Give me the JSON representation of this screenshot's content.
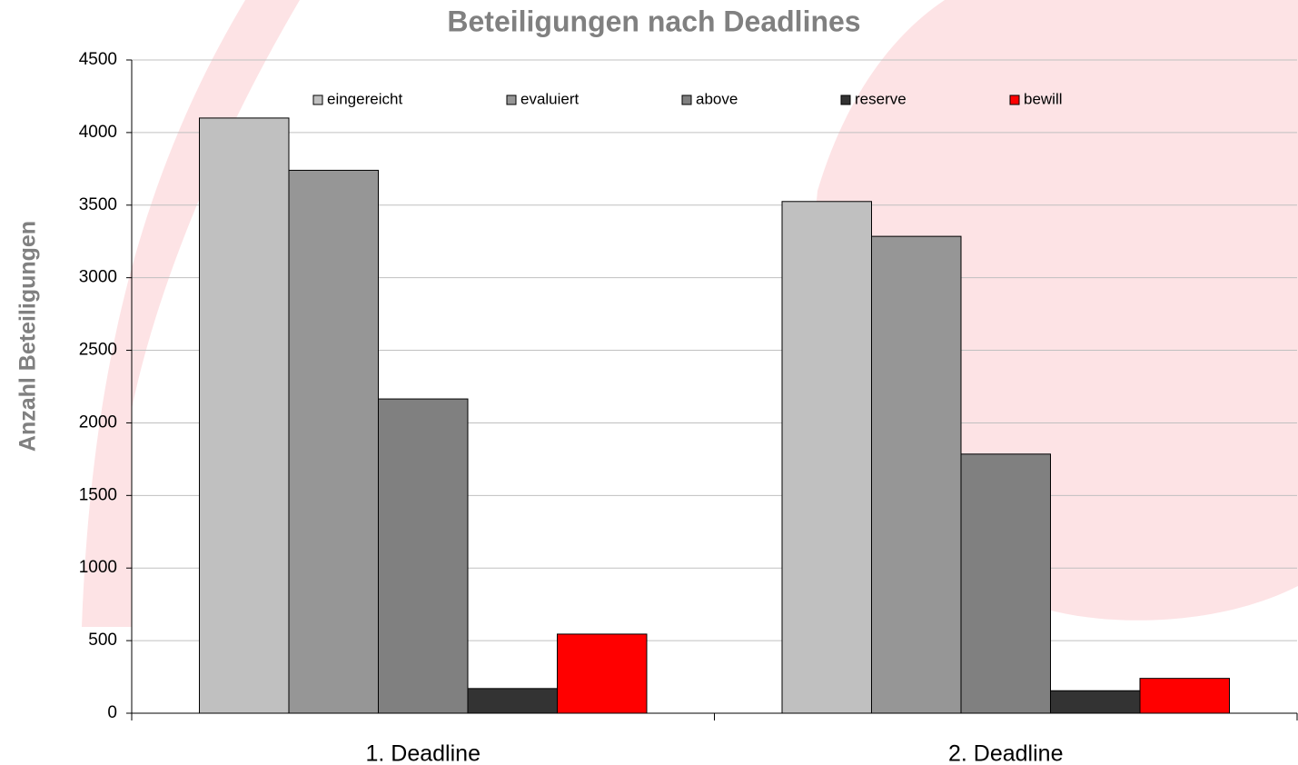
{
  "chart_data": {
    "type": "bar",
    "title": "Beteiligungen nach Deadlines",
    "y_label": "Anzahl Beteiligungen",
    "categories": [
      "1. Deadline",
      "2. Deadline"
    ],
    "series": [
      {
        "name": "eingereicht",
        "color": "#c0c0c0",
        "values": [
          4100,
          3525
        ]
      },
      {
        "name": "evaluiert",
        "color": "#969696",
        "values": [
          3740,
          3285
        ]
      },
      {
        "name": "above",
        "color": "#808080",
        "values": [
          2165,
          1785
        ]
      },
      {
        "name": "reserve",
        "color": "#333333",
        "values": [
          170,
          155
        ]
      },
      {
        "name": "bewill",
        "color": "#ff0000",
        "values": [
          545,
          240
        ]
      }
    ],
    "ylim": [
      0,
      4500
    ],
    "yticks": [
      0,
      500,
      1000,
      1500,
      2000,
      2500,
      3000,
      3500,
      4000,
      4500
    ],
    "grid": true,
    "legend": "top"
  }
}
